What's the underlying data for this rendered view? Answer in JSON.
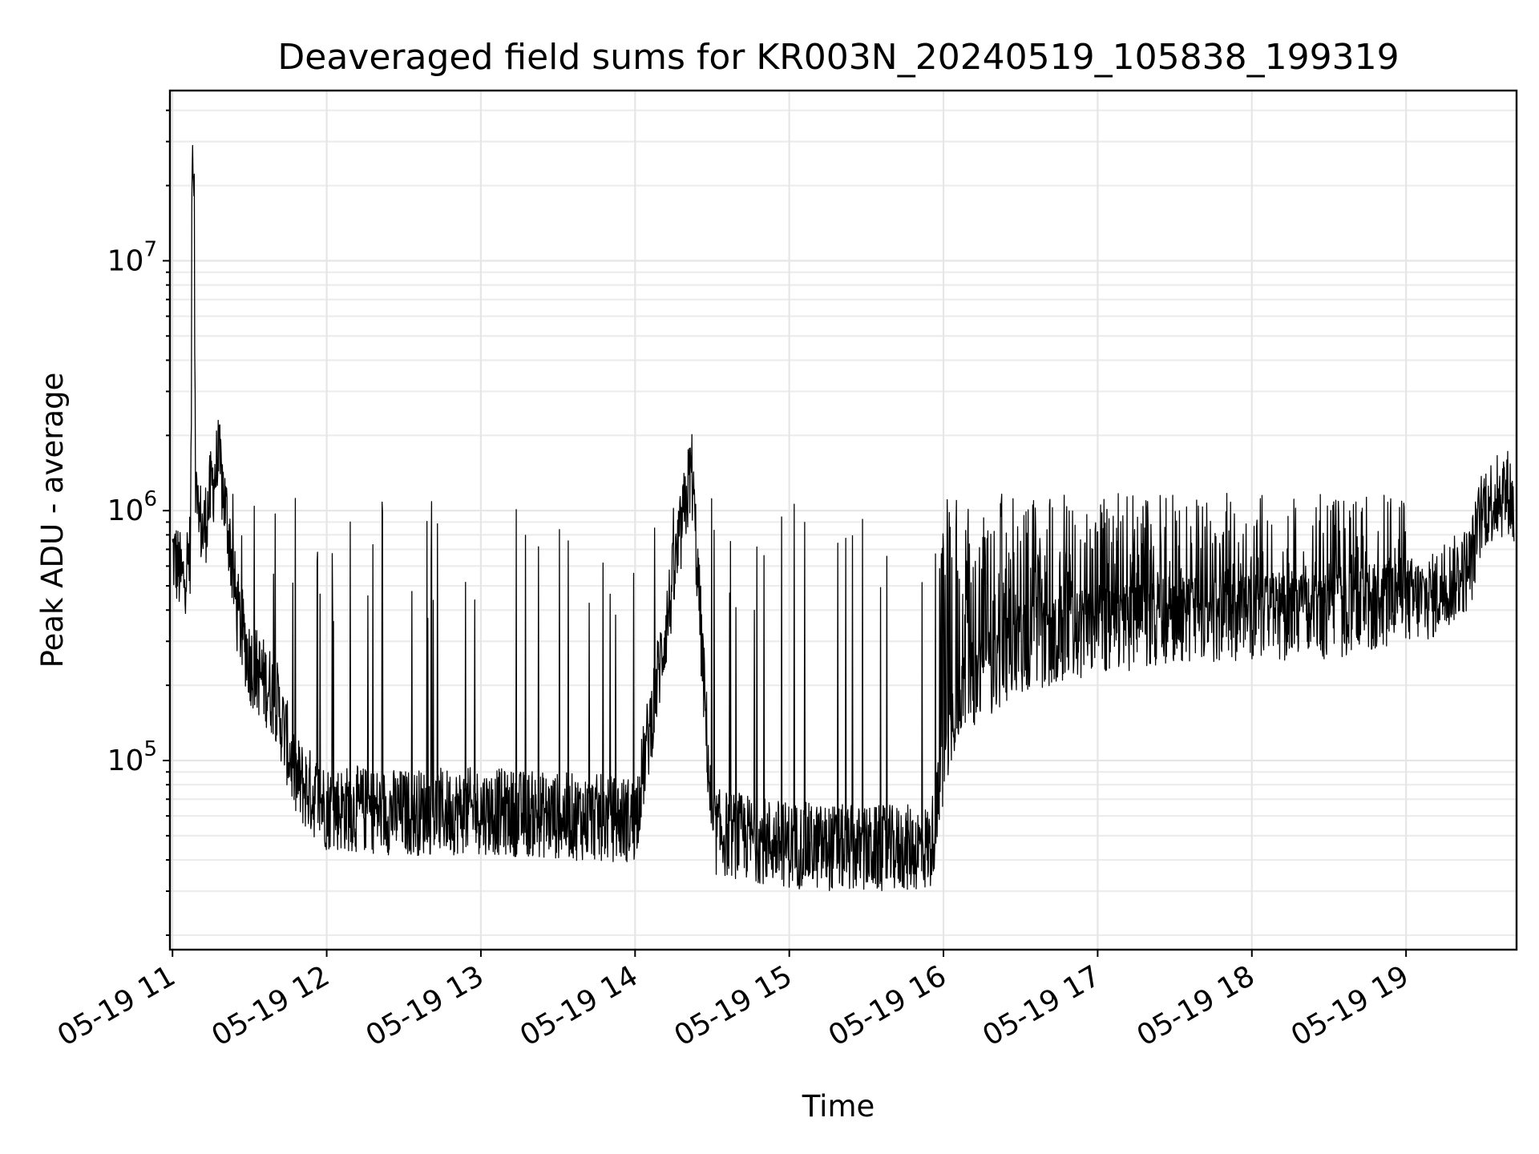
{
  "chart_data": {
    "type": "line",
    "title": "Deaveraged field sums for KR003N_20240519_105838_199319",
    "xlabel": "Time",
    "ylabel": "Peak ADU - average",
    "yscale": "log",
    "xlim": [
      "2024-05-19 10:59",
      "2024-05-19 19:43"
    ],
    "ylim": [
      17500,
      48000000
    ],
    "x_tick_labels": [
      "05-19 11",
      "05-19 12",
      "05-19 13",
      "05-19 14",
      "05-19 15",
      "05-19 16",
      "05-19 17",
      "05-19 18",
      "05-19 19"
    ],
    "y_tick_labels": [
      {
        "base": "10",
        "exp": "5",
        "value": 100000
      },
      {
        "base": "10",
        "exp": "6",
        "value": 1000000
      },
      {
        "base": "10",
        "exp": "7",
        "value": 10000000
      }
    ],
    "grid": true,
    "legend": "none",
    "line_color": "#000000",
    "series": [
      {
        "points": [
          [
            "2024-05-19 11:00",
            680000
          ],
          [
            "2024-05-19 11:04",
            520000
          ],
          [
            "2024-05-19 11:07",
            700000
          ],
          [
            "2024-05-19 11:08",
            33000000
          ],
          [
            "2024-05-19 11:09",
            1100000
          ],
          [
            "2024-05-19 11:12",
            800000
          ],
          [
            "2024-05-19 11:15",
            1200000
          ],
          [
            "2024-05-19 11:18",
            1600000
          ],
          [
            "2024-05-19 11:22",
            800000
          ],
          [
            "2024-05-19 11:25",
            400000
          ],
          [
            "2024-05-19 11:30",
            250000
          ],
          [
            "2024-05-19 11:40",
            180000
          ],
          [
            "2024-05-19 11:48",
            85000
          ],
          [
            "2024-05-19 12:00",
            65000
          ],
          [
            "2024-05-19 12:30",
            62000
          ],
          [
            "2024-05-19 13:00",
            63000
          ],
          [
            "2024-05-19 13:30",
            60000
          ],
          [
            "2024-05-19 14:00",
            58000
          ],
          [
            "2024-05-19 14:22",
            1500000
          ],
          [
            "2024-05-19 14:30",
            52000
          ],
          [
            "2024-05-19 15:00",
            46000
          ],
          [
            "2024-05-19 15:30",
            44000
          ],
          [
            "2024-05-19 15:55",
            45000
          ],
          [
            "2024-05-19 16:05",
            180000
          ],
          [
            "2024-05-19 16:30",
            280000
          ],
          [
            "2024-05-19 17:00",
            330000
          ],
          [
            "2024-05-19 17:30",
            360000
          ],
          [
            "2024-05-19 18:00",
            380000
          ],
          [
            "2024-05-19 18:30",
            370000
          ],
          [
            "2024-05-19 18:55",
            430000
          ],
          [
            "2024-05-19 19:10",
            450000
          ],
          [
            "2024-05-19 19:25",
            600000
          ],
          [
            "2024-05-19 19:30",
            1050000
          ],
          [
            "2024-05-19 19:40",
            1200000
          ],
          [
            "2024-05-19 19:42",
            1000000
          ]
        ]
      }
    ]
  }
}
